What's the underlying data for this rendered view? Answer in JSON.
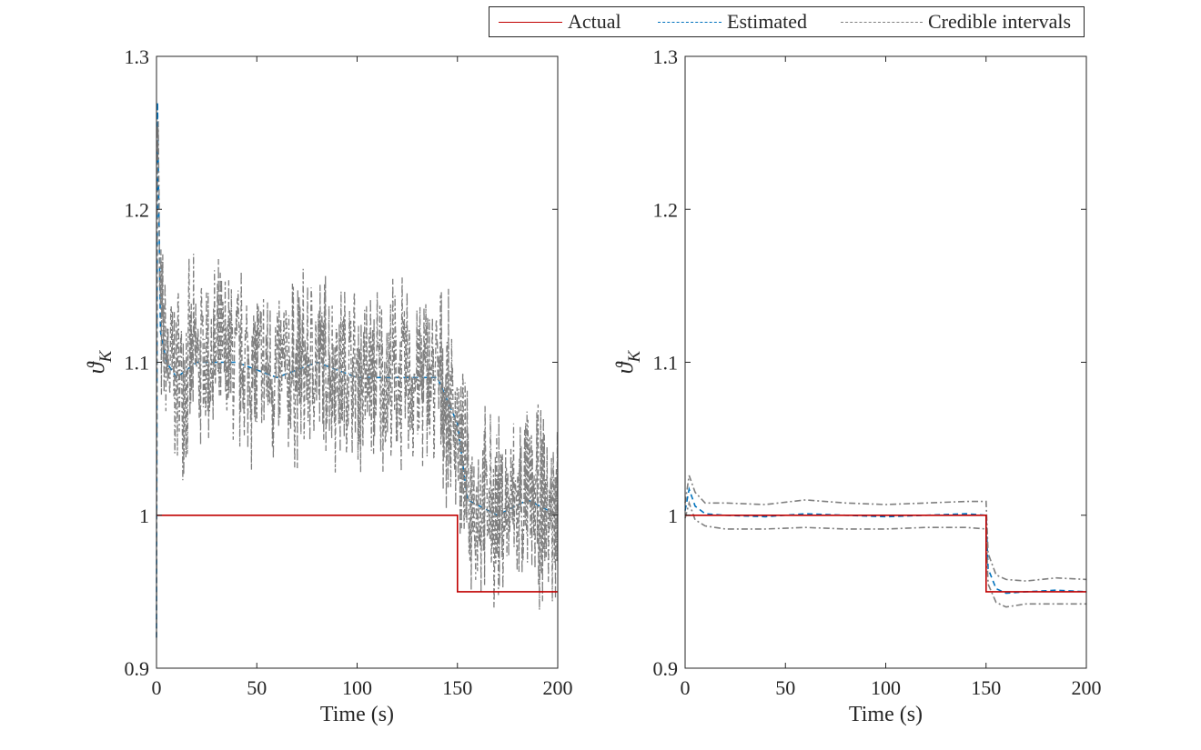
{
  "legend": {
    "items": [
      {
        "label": "Actual",
        "color": "#c00000",
        "style": "solid"
      },
      {
        "label": "Estimated",
        "color": "#0072bd",
        "style": "dashed"
      },
      {
        "label": "Credible intervals",
        "color": "#7f7f7f",
        "style": "dashdot"
      }
    ],
    "placement": "top-right"
  },
  "chart_data": [
    {
      "type": "line",
      "xlabel": "Time (s)",
      "ylabel": "ϑ",
      "ylabel_sub": "K",
      "xlim": [
        0,
        200
      ],
      "ylim": [
        0.9,
        1.3
      ],
      "xticks": [
        0,
        50,
        100,
        150,
        200
      ],
      "yticks": [
        0.9,
        1,
        1.1,
        1.2,
        1.3
      ],
      "ytick_labels": [
        "0.9",
        "1",
        "1.1",
        "1.2",
        "1.3"
      ],
      "grid": false,
      "series": [
        {
          "name": "Actual",
          "color": "#c00000",
          "style": "solid",
          "x": [
            0,
            150,
            150,
            200
          ],
          "y": [
            1,
            1,
            0.95,
            0.95
          ]
        },
        {
          "name": "Estimated",
          "color": "#0072bd",
          "style": "dashed",
          "x": [
            0,
            0.5,
            2,
            5,
            10,
            20,
            40,
            60,
            80,
            100,
            120,
            140,
            150,
            155,
            170,
            185,
            200
          ],
          "y": [
            0.92,
            1.27,
            1.12,
            1.1,
            1.09,
            1.1,
            1.1,
            1.09,
            1.1,
            1.09,
            1.09,
            1.09,
            1.06,
            1.01,
            1.0,
            1.01,
            1.0
          ]
        },
        {
          "name": "Credible intervals",
          "color": "#7f7f7f",
          "style": "dashdot",
          "x": [
            0,
            0.5,
            2,
            5,
            10,
            20,
            40,
            60,
            80,
            100,
            120,
            140,
            150,
            155,
            170,
            185,
            200
          ],
          "y": [
            0.92,
            1.27,
            1.12,
            1.1,
            1.09,
            1.1,
            1.1,
            1.09,
            1.1,
            1.09,
            1.09,
            1.09,
            1.06,
            1.01,
            1.0,
            1.01,
            1.0
          ],
          "noise_amplitude": 0.05
        }
      ]
    },
    {
      "type": "line",
      "xlabel": "Time (s)",
      "ylabel": "ϑ",
      "ylabel_sub": "K",
      "xlim": [
        0,
        200
      ],
      "ylim": [
        0.9,
        1.3
      ],
      "xticks": [
        0,
        50,
        100,
        150,
        200
      ],
      "yticks": [
        0.9,
        1,
        1.1,
        1.2,
        1.3
      ],
      "ytick_labels": [
        "0.9",
        "1",
        "1.1",
        "1.2",
        "1.3"
      ],
      "grid": false,
      "series": [
        {
          "name": "Actual",
          "color": "#c00000",
          "style": "solid",
          "x": [
            0,
            150,
            150,
            200
          ],
          "y": [
            1,
            1,
            0.95,
            0.95
          ]
        },
        {
          "name": "Estimated",
          "color": "#0072bd",
          "style": "dashed",
          "x": [
            0,
            2,
            5,
            10,
            20,
            40,
            60,
            80,
            100,
            120,
            140,
            150,
            151,
            155,
            160,
            170,
            185,
            200
          ],
          "y": [
            1.003,
            1.017,
            1.006,
            1.001,
            1.0,
            0.999,
            1.001,
            1.0,
            0.999,
            1.0,
            1.001,
            1.0,
            0.965,
            0.952,
            0.949,
            0.95,
            0.951,
            0.95
          ]
        },
        {
          "name": "Credible intervals (upper)",
          "color": "#7f7f7f",
          "style": "dashdot",
          "x": [
            0,
            2,
            5,
            10,
            20,
            40,
            60,
            80,
            100,
            120,
            140,
            150,
            151,
            155,
            160,
            170,
            185,
            200
          ],
          "y": [
            1.008,
            1.026,
            1.015,
            1.008,
            1.008,
            1.007,
            1.01,
            1.008,
            1.007,
            1.008,
            1.009,
            1.009,
            0.975,
            0.961,
            0.958,
            0.957,
            0.959,
            0.958
          ]
        },
        {
          "name": "Credible intervals (lower)",
          "color": "#7f7f7f",
          "style": "dashdot",
          "x": [
            0,
            2,
            5,
            10,
            20,
            40,
            60,
            80,
            100,
            120,
            140,
            150,
            151,
            155,
            160,
            170,
            185,
            200
          ],
          "y": [
            0.998,
            1.008,
            0.997,
            0.993,
            0.991,
            0.991,
            0.992,
            0.991,
            0.991,
            0.992,
            0.992,
            0.991,
            0.955,
            0.943,
            0.94,
            0.942,
            0.942,
            0.942
          ]
        }
      ]
    }
  ]
}
